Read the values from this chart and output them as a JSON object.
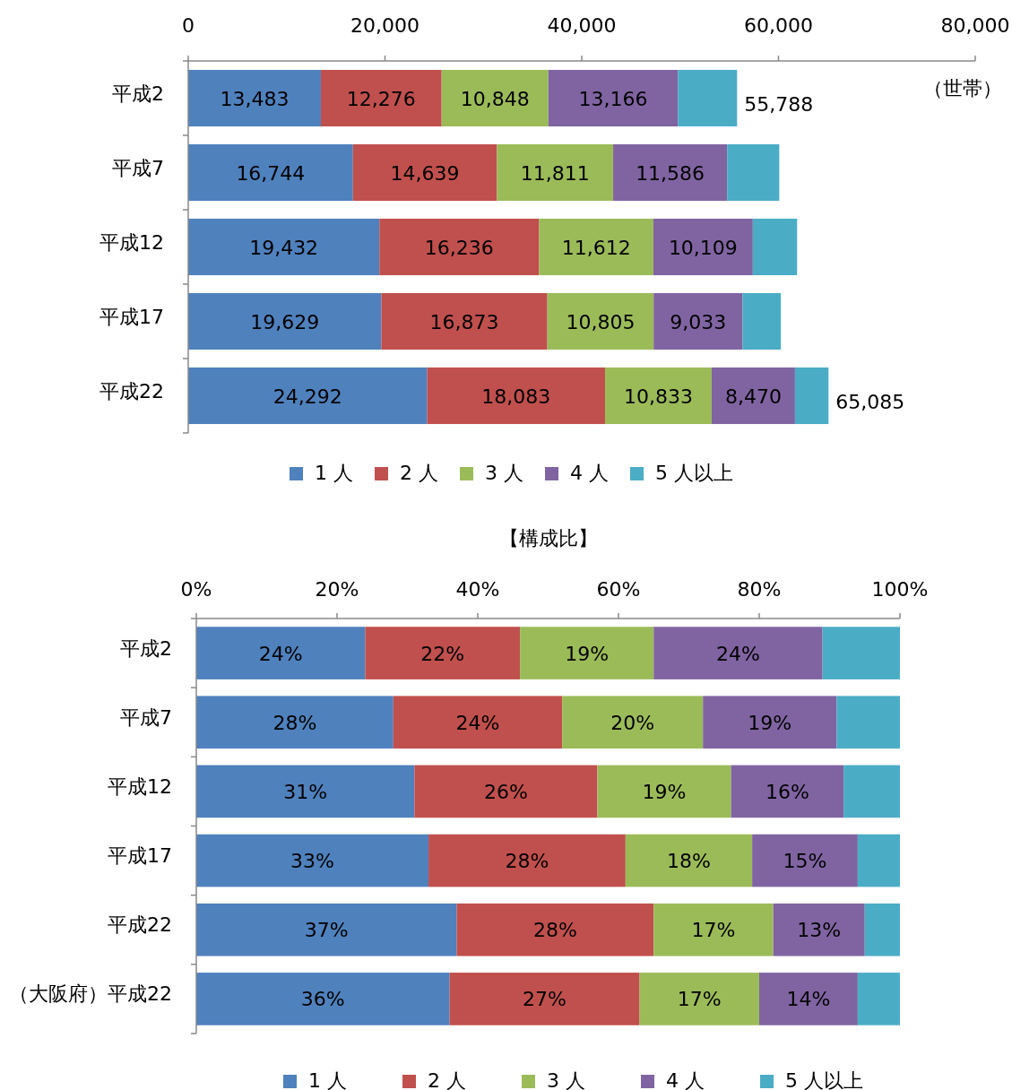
{
  "chart_data": [
    {
      "type": "bar",
      "orientation": "horizontal",
      "stacked": true,
      "legend": "bottom",
      "categories": [
        "平成2",
        "平成7",
        "平成12",
        "平成17",
        "平成22"
      ],
      "xlim": [
        0,
        80000
      ],
      "xticks": [
        0,
        {
          "value": 20000,
          "label": "20,000"
        },
        {
          "value": 40000,
          "label": "40,000"
        },
        {
          "value": 60000,
          "label": "60,000"
        },
        {
          "value": 80000,
          "label": "80,000"
        }
      ],
      "series": [
        {
          "name": "1 人",
          "color": "#4f81bd",
          "values": [
            13483,
            16744,
            19432,
            19629,
            24292
          ],
          "value_labels": [
            "13,483",
            "16,744",
            "19,432",
            "19,629",
            "24,292"
          ]
        },
        {
          "name": "2 人",
          "color": "#c0504d",
          "values": [
            12276,
            14639,
            16236,
            16873,
            18083
          ],
          "value_labels": [
            "12,276",
            "14,639",
            "16,236",
            "16,873",
            "18,083"
          ]
        },
        {
          "name": "3 人",
          "color": "#9bbb59",
          "values": [
            10848,
            11811,
            11612,
            10805,
            10833
          ],
          "value_labels": [
            "10,848",
            "11,811",
            "11,612",
            "10,805",
            "10,833"
          ]
        },
        {
          "name": "4 人",
          "color": "#8064a2",
          "values": [
            13166,
            11586,
            10109,
            9033,
            8470
          ],
          "value_labels": [
            "13,166",
            "11,586",
            "10,109",
            "9,033",
            "8,470"
          ]
        },
        {
          "name": "5 人以上",
          "color": "#4bacc6",
          "values": [
            6015,
            5300,
            4500,
            3900,
            3407
          ],
          "value_labels": [
            null,
            null,
            null,
            null,
            null
          ]
        }
      ],
      "totals": [
        "55,788",
        null,
        null,
        null,
        "65,085"
      ],
      "annotations": [
        "（世帯）"
      ]
    },
    {
      "type": "bar",
      "orientation": "horizontal",
      "stacked": true,
      "legend": "bottom",
      "title": "【構成比】",
      "categories": [
        "平成2",
        "平成7",
        "平成12",
        "平成17",
        "平成22",
        "（大阪府）平成22"
      ],
      "xlim": [
        0,
        100
      ],
      "xticks": [
        {
          "value": 0,
          "label": "0%"
        },
        {
          "value": 20,
          "label": "20%"
        },
        {
          "value": 40,
          "label": "40%"
        },
        {
          "value": 60,
          "label": "60%"
        },
        {
          "value": 80,
          "label": "80%"
        },
        {
          "value": 100,
          "label": "100%"
        }
      ],
      "series": [
        {
          "name": "1 人",
          "color": "#4f81bd",
          "values": [
            24,
            28,
            31,
            33,
            37,
            36
          ],
          "value_labels": [
            "24%",
            "28%",
            "31%",
            "33%",
            "37%",
            "36%"
          ]
        },
        {
          "name": "2 人",
          "color": "#c0504d",
          "values": [
            22,
            24,
            26,
            28,
            28,
            27
          ],
          "value_labels": [
            "22%",
            "24%",
            "26%",
            "28%",
            "28%",
            "27%"
          ]
        },
        {
          "name": "3 人",
          "color": "#9bbb59",
          "values": [
            19,
            20,
            19,
            18,
            17,
            17
          ],
          "value_labels": [
            "19%",
            "20%",
            "19%",
            "18%",
            "17%",
            "17%"
          ]
        },
        {
          "name": "4 人",
          "color": "#8064a2",
          "values": [
            24,
            19,
            16,
            15,
            13,
            14
          ],
          "value_labels": [
            "24%",
            "19%",
            "16%",
            "15%",
            "13%",
            "14%"
          ]
        },
        {
          "name": "5 人以上",
          "color": "#4bacc6",
          "values": [
            11,
            9,
            8,
            6,
            5,
            6
          ],
          "value_labels": [
            null,
            null,
            null,
            null,
            null,
            null
          ]
        }
      ]
    }
  ]
}
